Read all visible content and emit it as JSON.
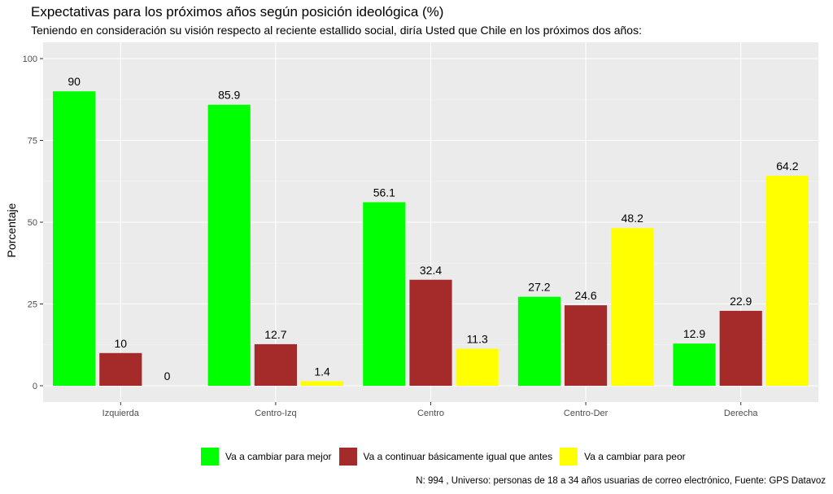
{
  "title": "Expectativas para los próximos años según posición ideológica (%)",
  "subtitle": "Teniendo en consideración su visión respecto al reciente estallido social, diría Usted que Chile en los próximos dos años:",
  "caption": "N: 994 , Universo: personas de 18 a 34 años usuarias de correo electrónico, Fuente: GPS Datavoz",
  "chart_data": {
    "type": "bar",
    "title": "Expectativas para los próximos años según posición ideológica (%)",
    "subtitle": "Teniendo en consideración su visión respecto al reciente estallido social, diría Usted que Chile en los próximos dos años:",
    "xlabel": "",
    "ylabel": "Porcentaje",
    "ylim": [
      0,
      100
    ],
    "yticks": [
      0,
      25,
      50,
      75,
      100
    ],
    "grid": true,
    "legend_position": "bottom",
    "categories": [
      "Izquierda",
      "Centro-Izq",
      "Centro",
      "Centro-Der",
      "Derecha"
    ],
    "series": [
      {
        "name": "Va a cambiar para mejor",
        "color": "#00ff00",
        "values": [
          90,
          85.9,
          56.1,
          27.2,
          12.9
        ]
      },
      {
        "name": "Va a continuar básicamente igual que antes",
        "color": "#a52a2a",
        "values": [
          10,
          12.7,
          32.4,
          24.6,
          22.9
        ]
      },
      {
        "name": "Va a cambiar para peor",
        "color": "#ffff00",
        "values": [
          0,
          1.4,
          11.3,
          48.2,
          64.2
        ]
      }
    ]
  }
}
